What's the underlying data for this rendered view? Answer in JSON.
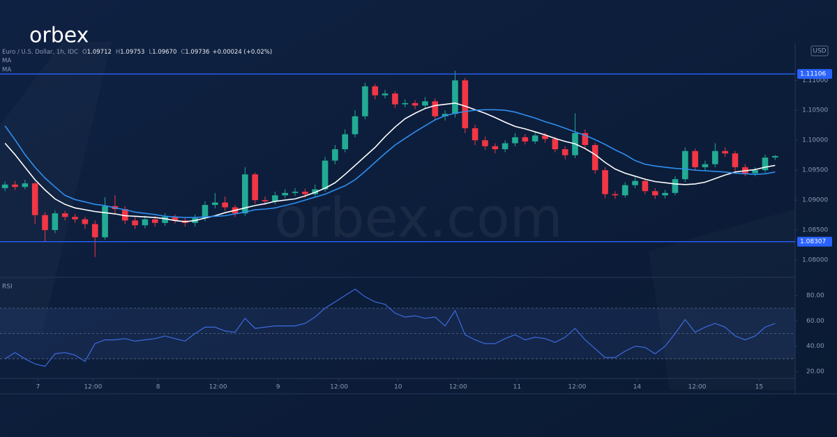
{
  "brand": "orbex",
  "watermark": "orbex.com",
  "chart_data": [
    {
      "type": "candlestick",
      "title": "Euro / U.S. Dollar, 1h, IDC",
      "header": [
        {
          "key": "O",
          "value": "1.09712"
        },
        {
          "key": "H",
          "value": "1.09753"
        },
        {
          "key": "L",
          "value": "1.09670"
        },
        {
          "key": "C",
          "value": "1.09736"
        }
      ],
      "change": "+0.00024 (+0.02%)",
      "currency": "USD",
      "up_color": "#22ab94",
      "down_color": "#f23645",
      "open": [
        1.092,
        1.0926,
        1.0922,
        1.0928,
        1.0875,
        1.085,
        1.0878,
        1.0872,
        1.0868,
        1.086,
        1.0838,
        1.089,
        1.0885,
        1.0866,
        1.0858,
        1.0868,
        1.0862,
        1.0872,
        1.0866,
        1.0862,
        1.087,
        1.0892,
        1.0896,
        1.0888,
        1.0878,
        1.0943,
        1.09,
        1.0898,
        1.0908,
        1.0912,
        1.0914,
        1.091,
        1.0918,
        1.0966,
        1.0985,
        1.101,
        1.104,
        1.109,
        1.1075,
        1.1078,
        1.106,
        1.1062,
        1.1058,
        1.1065,
        1.104,
        1.1044,
        1.11,
        1.102,
        1.1,
        1.099,
        1.0985,
        1.0995,
        1.1005,
        1.0998,
        1.1008,
        1.1002,
        1.0985,
        1.0975,
        1.1012,
        1.0992,
        1.095,
        1.091,
        1.0908,
        1.0925,
        1.0932,
        1.0915,
        1.0908,
        1.0912,
        1.0935,
        1.0982,
        1.0955,
        1.096,
        1.0982,
        1.0978,
        1.0955,
        1.0945,
        1.095,
        1.09712
      ],
      "high": [
        1.0931,
        1.0932,
        1.0934,
        1.093,
        1.088,
        1.0883,
        1.0882,
        1.0877,
        1.0872,
        1.0866,
        1.0905,
        1.0908,
        1.089,
        1.0872,
        1.0874,
        1.0873,
        1.0878,
        1.0876,
        1.087,
        1.0876,
        1.0898,
        1.0912,
        1.0906,
        1.0892,
        1.0955,
        1.0946,
        1.0906,
        1.0914,
        1.0918,
        1.092,
        1.0919,
        1.0926,
        1.0972,
        1.0992,
        1.1018,
        1.105,
        1.1096,
        1.1094,
        1.1084,
        1.1082,
        1.1068,
        1.1067,
        1.1072,
        1.107,
        1.105,
        1.1116,
        1.1104,
        1.1026,
        1.1006,
        1.0995,
        1.1,
        1.1012,
        1.101,
        1.1014,
        1.1012,
        1.1006,
        1.099,
        1.1045,
        1.1018,
        1.0996,
        1.0955,
        1.0915,
        1.093,
        1.0938,
        1.0936,
        1.092,
        1.0917,
        1.094,
        1.0988,
        1.0986,
        1.0966,
        1.0995,
        1.0988,
        1.0982,
        1.096,
        1.0955,
        1.0976,
        1.09753
      ],
      "low": [
        1.0915,
        1.0917,
        1.0918,
        1.086,
        1.083,
        1.0845,
        1.0866,
        1.0862,
        1.0852,
        1.0805,
        1.0834,
        1.0878,
        1.086,
        1.0852,
        1.0853,
        1.0856,
        1.0857,
        1.0861,
        1.0856,
        1.0856,
        1.0865,
        1.0886,
        1.0882,
        1.0872,
        1.0874,
        1.0894,
        1.0892,
        1.0893,
        1.0903,
        1.0907,
        1.0904,
        1.0905,
        1.0914,
        1.096,
        1.098,
        1.1005,
        1.1035,
        1.1068,
        1.107,
        1.1054,
        1.1055,
        1.1052,
        1.1053,
        1.1034,
        1.1033,
        1.1038,
        1.1012,
        1.0992,
        1.0984,
        1.0978,
        1.098,
        1.099,
        1.0993,
        1.0994,
        1.0996,
        1.098,
        1.0968,
        1.097,
        1.0986,
        1.0944,
        1.0903,
        1.0902,
        1.0904,
        1.092,
        1.091,
        1.0902,
        1.0903,
        1.0908,
        1.093,
        1.095,
        1.0948,
        1.0955,
        1.0972,
        1.0948,
        1.094,
        1.094,
        1.0946,
        1.0967
      ],
      "close": [
        1.0926,
        1.0922,
        1.0928,
        1.0875,
        1.085,
        1.0878,
        1.0872,
        1.0868,
        1.086,
        1.0838,
        1.089,
        1.0885,
        1.0866,
        1.0858,
        1.0868,
        1.0862,
        1.0872,
        1.0866,
        1.0862,
        1.087,
        1.0892,
        1.0896,
        1.0888,
        1.0878,
        1.0943,
        1.09,
        1.0898,
        1.0908,
        1.0912,
        1.0914,
        1.091,
        1.0918,
        1.0966,
        1.0985,
        1.101,
        1.104,
        1.109,
        1.1075,
        1.1078,
        1.106,
        1.1062,
        1.1058,
        1.1065,
        1.104,
        1.1044,
        1.11,
        1.102,
        1.1,
        1.099,
        1.0985,
        1.0995,
        1.1005,
        1.0998,
        1.1008,
        1.1002,
        1.0985,
        1.0975,
        1.1012,
        1.0992,
        1.095,
        1.091,
        1.0908,
        1.0925,
        1.0932,
        1.0915,
        1.0908,
        1.0912,
        1.0935,
        1.0982,
        1.0955,
        1.096,
        1.0982,
        1.0978,
        1.0955,
        1.0945,
        1.095,
        1.0971,
        1.09736
      ],
      "series": [
        {
          "name": "MA",
          "color": "#ffffff",
          "values": [
            1.0995,
            1.0976,
            1.0955,
            1.0934,
            1.0917,
            1.0902,
            1.0893,
            1.0887,
            1.0884,
            1.0881,
            1.0879,
            1.0877,
            1.0874,
            1.0873,
            1.0872,
            1.0871,
            1.0869,
            1.0866,
            1.0864,
            1.0866,
            1.087,
            1.0874,
            1.0879,
            1.0883,
            1.0887,
            1.0891,
            1.0894,
            1.0898,
            1.09,
            1.0902,
            1.0907,
            1.0913,
            1.092,
            1.0929,
            1.0943,
            1.0958,
            1.0973,
            1.0988,
            1.1006,
            1.1022,
            1.1036,
            1.1045,
            1.1053,
            1.1058,
            1.106,
            1.1062,
            1.1057,
            1.1051,
            1.1045,
            1.1038,
            1.103,
            1.1023,
            1.1019,
            1.1014,
            1.1009,
            1.1003,
            1.0998,
            1.0994,
            1.0986,
            1.0976,
            1.0963,
            1.0952,
            1.0945,
            1.094,
            1.0935,
            1.0931,
            1.0929,
            1.0927,
            1.0926,
            1.0927,
            1.093,
            1.0936,
            1.0942,
            1.0947,
            1.0949,
            1.0951,
            1.0955,
            1.0958
          ]
        },
        {
          "name": "MA",
          "color": "#2f8ff0",
          "values": [
            1.1024,
            1.1001,
            1.0976,
            1.0955,
            1.0937,
            1.0922,
            1.0908,
            1.0901,
            1.0897,
            1.0893,
            1.0891,
            1.0887,
            1.0884,
            1.088,
            1.0878,
            1.0876,
            1.0873,
            1.0872,
            1.0871,
            1.0871,
            1.0872,
            1.0873,
            1.0874,
            1.0877,
            1.088,
            1.0884,
            1.0885,
            1.0887,
            1.0891,
            1.0895,
            1.09,
            1.0905,
            1.091,
            1.0917,
            1.0924,
            1.0934,
            1.0948,
            1.0963,
            1.0978,
            1.0992,
            1.1003,
            1.1014,
            1.1024,
            1.1034,
            1.1041,
            1.1045,
            1.1048,
            1.105,
            1.1051,
            1.1051,
            1.105,
            1.1047,
            1.1042,
            1.1037,
            1.1031,
            1.1026,
            1.102,
            1.1014,
            1.1008,
            1.1001,
            1.0993,
            1.0984,
            1.0976,
            1.0966,
            1.096,
            1.0957,
            1.0955,
            1.0953,
            1.0952,
            1.095,
            1.0949,
            1.0948,
            1.0947,
            1.0945,
            1.0944,
            1.0943,
            1.0944,
            1.0947
          ]
        }
      ],
      "hlines": [
        1.11106,
        1.08307
      ],
      "hline_color": "#2962ff",
      "xlim": [
        -0.5,
        79
      ],
      "xticks": [
        {
          "value": 3.3,
          "label": "7"
        },
        {
          "value": 8.8,
          "label": "12:00"
        },
        {
          "value": 15.3,
          "label": "8"
        },
        {
          "value": 21.3,
          "label": "12:00"
        },
        {
          "value": 27.3,
          "label": "9"
        },
        {
          "value": 33.4,
          "label": "12:00"
        },
        {
          "value": 39.3,
          "label": "10"
        },
        {
          "value": 45.3,
          "label": "12:00"
        },
        {
          "value": 51.2,
          "label": "11"
        },
        {
          "value": 57.2,
          "label": "12:00"
        },
        {
          "value": 63.2,
          "label": "14"
        },
        {
          "value": 69.2,
          "label": "12:00"
        },
        {
          "value": 75.4,
          "label": "15"
        }
      ],
      "ylim": [
        1.0771,
        1.1162
      ],
      "yticks": [
        {
          "value": 1.08,
          "label": "1.08000"
        },
        {
          "value": 1.085,
          "label": "1.08500"
        },
        {
          "value": 1.09,
          "label": "1.09000"
        },
        {
          "value": 1.095,
          "label": "1.09500"
        },
        {
          "value": 1.1,
          "label": "1.10000"
        },
        {
          "value": 1.105,
          "label": "1.10500"
        },
        {
          "value": 1.11,
          "label": "1.11000"
        }
      ]
    },
    {
      "type": "line",
      "title": "RSI",
      "color": "#3d6be0",
      "values": [
        30,
        35,
        30,
        26,
        24,
        34,
        35,
        33,
        28,
        42,
        45,
        45,
        46,
        44,
        45,
        46,
        48,
        46,
        44,
        50,
        55,
        55,
        52,
        51,
        62,
        54,
        55,
        56,
        56,
        56,
        58,
        63,
        70,
        75,
        80,
        85,
        79,
        75,
        73,
        66,
        63,
        64,
        62,
        63,
        56,
        68,
        49,
        45,
        42,
        42,
        46,
        49,
        45,
        47,
        46,
        43,
        47,
        54,
        45,
        38,
        31,
        31,
        36,
        40,
        39,
        34,
        40,
        50,
        61,
        51,
        55,
        58,
        55,
        48,
        45,
        48,
        55,
        58
      ],
      "levels": [
        70,
        50,
        30
      ],
      "ylim": [
        14.5,
        94.3
      ],
      "yticks": [
        {
          "value": 20,
          "label": "20.00"
        },
        {
          "value": 40,
          "label": "40.00"
        },
        {
          "value": 60,
          "label": "60.00"
        },
        {
          "value": 80,
          "label": "80.00"
        }
      ]
    }
  ]
}
